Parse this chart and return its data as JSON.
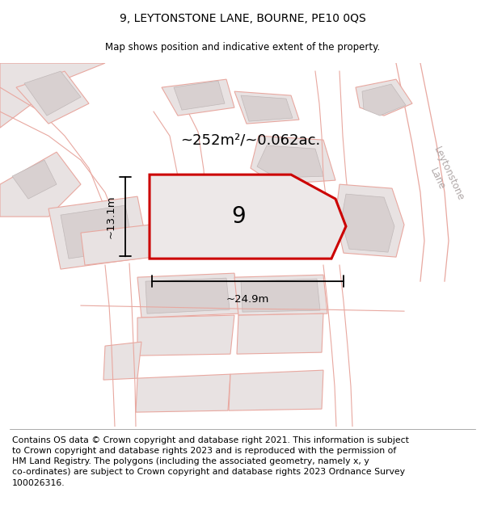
{
  "title": "9, LEYTONSTONE LANE, BOURNE, PE10 0QS",
  "subtitle": "Map shows position and indicative extent of the property.",
  "footer": "Contains OS data © Crown copyright and database right 2021. This information is subject\nto Crown copyright and database rights 2023 and is reproduced with the permission of\nHM Land Registry. The polygons (including the associated geometry, namely x, y\nco-ordinates) are subject to Crown copyright and database rights 2023 Ordnance Survey\n100026316.",
  "title_fontsize": 10,
  "subtitle_fontsize": 8.5,
  "footer_fontsize": 7.8,
  "map_bg": "#f2eded",
  "parcel_face": "#e8e2e2",
  "parcel_edge": "#e8a8a0",
  "building_face": "#d8d0d0",
  "building_edge": "#c0b8b8",
  "plot_edge": "#cc0000",
  "plot_face": "#ede8e8",
  "dim_color": "#000000",
  "street_color": "#b0a8a8",
  "label_color": "#000000",
  "area_label": "~252m²/~0.062ac.",
  "number_label": "9",
  "dim_height_label": "~13.1m",
  "dim_width_label": "~24.9m",
  "street_label": "Leytonstone\nLane"
}
